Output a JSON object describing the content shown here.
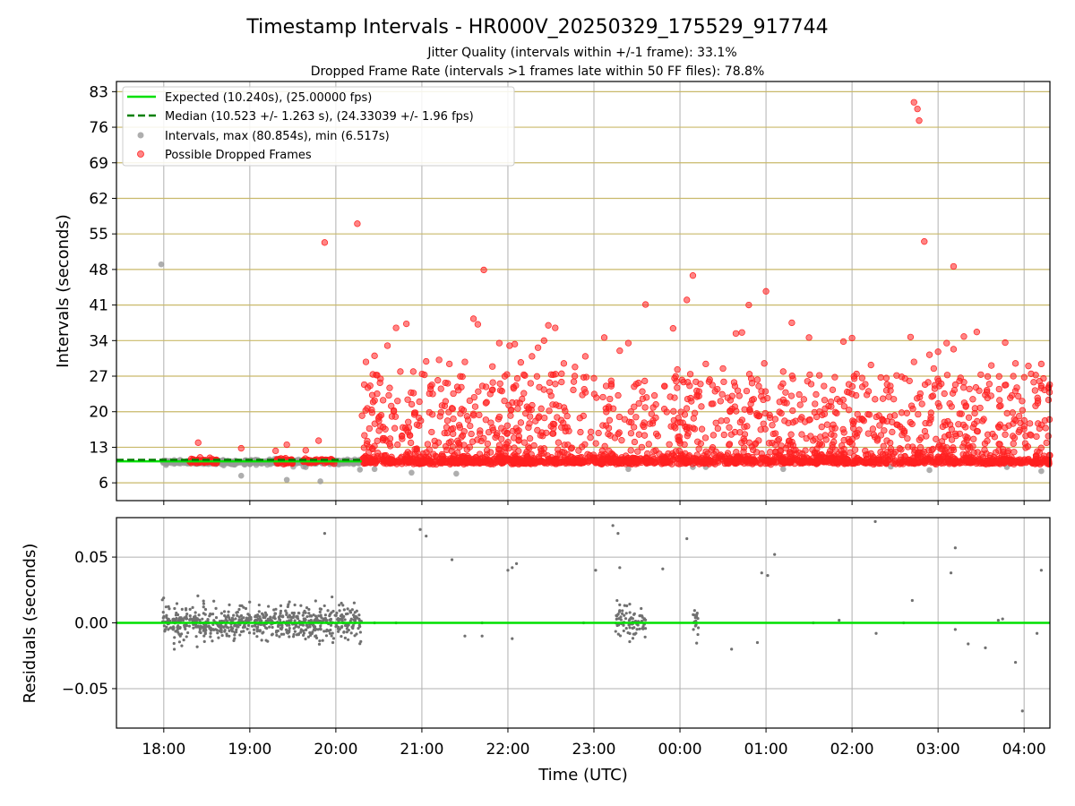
{
  "figure": {
    "title": "Timestamp Intervals - HR000V_20250329_175529_917744",
    "subtitle_1": "Jitter Quality (intervals within +/-1 frame): 33.1%",
    "subtitle_2": "Dropped Frame Rate (intervals >1 frames late within 50 FF files): 78.8%"
  },
  "colors": {
    "expected": "#00e000",
    "median": "#008000",
    "interval_points": "#9a9a9a",
    "dropped_points": "#ff2020",
    "residual_points": "#707070",
    "grid": "#b0b0b0",
    "hgrid_top": "#c9b96a"
  },
  "chart_data": [
    {
      "type": "scatter",
      "panel": "intervals",
      "ylabel": "Intervals (seconds)",
      "xlabel": "",
      "x_unit": "hours after 18:00 UTC on the first night",
      "xlim": [
        -0.55,
        10.3
      ],
      "ylim": [
        2.5,
        85
      ],
      "yticks": [
        6,
        13,
        20,
        27,
        34,
        41,
        48,
        55,
        62,
        69,
        76,
        83
      ],
      "grid": true,
      "legend": {
        "placement": "upper-left",
        "entries": [
          "Expected (10.240s), (25.00000 fps)",
          "Median (10.523 +/- 1.263 s), (24.33039 +/- 1.96 fps)",
          "Intervals, max (80.854s), min (6.517s)",
          "Possible Dropped Frames"
        ]
      },
      "expected": {
        "value": 10.24,
        "x_range": [
          -0.55,
          2.3
        ]
      },
      "median": {
        "value": 10.523,
        "x_range": [
          -0.55,
          2.3
        ]
      },
      "interval_series": {
        "name": "Intervals, max (80.854s), min (6.517s)",
        "points": [
          [
            -0.03,
            49.0
          ],
          [
            0.0,
            10.4
          ],
          [
            0.15,
            10.2
          ],
          [
            0.3,
            10.1
          ],
          [
            0.9,
            7.4
          ],
          [
            1.43,
            6.6
          ],
          [
            1.65,
            9.1
          ],
          [
            1.82,
            6.3
          ],
          [
            2.28,
            8.6
          ],
          [
            2.45,
            8.7
          ],
          [
            2.88,
            8.0
          ],
          [
            3.4,
            7.8
          ],
          [
            5.4,
            8.7
          ],
          [
            6.15,
            9.1
          ],
          [
            6.3,
            9.1
          ],
          [
            7.2,
            8.7
          ],
          [
            8.45,
            9.2
          ],
          [
            8.9,
            8.5
          ],
          [
            9.8,
            9.1
          ],
          [
            10.2,
            8.3
          ]
        ]
      },
      "dropped_series": {
        "name": "Possible Dropped Frames",
        "points": [
          [
            0.4,
            13.9
          ],
          [
            0.9,
            12.8
          ],
          [
            1.3,
            12.3
          ],
          [
            1.43,
            13.5
          ],
          [
            1.65,
            12.4
          ],
          [
            1.8,
            14.3
          ],
          [
            1.87,
            53.3
          ],
          [
            2.25,
            57.0
          ],
          [
            2.35,
            29.8
          ],
          [
            2.45,
            31.0
          ],
          [
            2.6,
            33.0
          ],
          [
            2.7,
            36.5
          ],
          [
            2.75,
            27.9
          ],
          [
            2.82,
            37.3
          ],
          [
            2.9,
            27.9
          ],
          [
            3.05,
            29.9
          ],
          [
            3.1,
            25.0
          ],
          [
            3.2,
            30.2
          ],
          [
            3.32,
            29.4
          ],
          [
            3.5,
            29.8
          ],
          [
            3.6,
            38.3
          ],
          [
            3.65,
            37.2
          ],
          [
            3.72,
            47.9
          ],
          [
            3.82,
            28.9
          ],
          [
            3.9,
            33.5
          ],
          [
            4.02,
            33.0
          ],
          [
            4.08,
            33.3
          ],
          [
            4.15,
            29.7
          ],
          [
            4.28,
            30.9
          ],
          [
            4.35,
            32.6
          ],
          [
            4.42,
            34.0
          ],
          [
            4.47,
            37.0
          ],
          [
            4.55,
            36.5
          ],
          [
            4.65,
            29.5
          ],
          [
            4.78,
            28.8
          ],
          [
            4.9,
            30.9
          ],
          [
            5.0,
            26.6
          ],
          [
            5.12,
            34.6
          ],
          [
            5.3,
            32.0
          ],
          [
            5.4,
            33.5
          ],
          [
            5.6,
            41.1
          ],
          [
            5.92,
            36.4
          ],
          [
            5.97,
            28.3
          ],
          [
            6.08,
            42.0
          ],
          [
            6.12,
            27.4
          ],
          [
            6.15,
            46.8
          ],
          [
            6.3,
            29.4
          ],
          [
            6.5,
            28.5
          ],
          [
            6.65,
            35.4
          ],
          [
            6.72,
            35.6
          ],
          [
            6.8,
            41.0
          ],
          [
            6.9,
            26.3
          ],
          [
            6.98,
            29.5
          ],
          [
            7.0,
            43.7
          ],
          [
            7.2,
            27.9
          ],
          [
            7.3,
            37.5
          ],
          [
            7.5,
            34.6
          ],
          [
            7.8,
            26.8
          ],
          [
            7.9,
            33.8
          ],
          [
            8.0,
            34.5
          ],
          [
            8.22,
            29.2
          ],
          [
            8.4,
            24.2
          ],
          [
            8.68,
            34.7
          ],
          [
            8.72,
            29.8
          ],
          [
            8.9,
            31.2
          ],
          [
            8.95,
            28.5
          ],
          [
            9.0,
            31.8
          ],
          [
            9.1,
            33.5
          ],
          [
            9.18,
            32.3
          ],
          [
            9.3,
            34.8
          ],
          [
            9.45,
            35.7
          ],
          [
            9.62,
            29.1
          ],
          [
            9.78,
            33.6
          ],
          [
            9.9,
            29.5
          ],
          [
            10.05,
            29.0
          ],
          [
            10.2,
            29.4
          ],
          [
            10.2,
            25.1
          ],
          [
            8.72,
            80.9
          ],
          [
            8.76,
            79.6
          ],
          [
            8.78,
            77.3
          ],
          [
            8.84,
            53.5
          ],
          [
            9.18,
            48.6
          ]
        ],
        "band": {
          "x_range": [
            2.3,
            10.3
          ],
          "y_range": [
            9.6,
            11.4
          ],
          "count": 1200
        },
        "scatter_region": {
          "x_range": [
            2.3,
            10.3
          ],
          "y_range": [
            10.5,
            27.5
          ],
          "count": 1100
        },
        "early_band": [
          [
            0.3,
            0.62
          ],
          [
            1.3,
            1.5
          ],
          [
            1.62,
            1.98
          ]
        ]
      }
    },
    {
      "type": "scatter",
      "panel": "residuals",
      "ylabel": "Residuals (seconds)",
      "xlabel": "Time (UTC)",
      "xlim": [
        -0.55,
        10.3
      ],
      "ylim": [
        -0.08,
        0.08
      ],
      "yticks": [
        -0.05,
        0.0,
        0.05
      ],
      "ytick_labels": [
        "−0.05",
        "0.00",
        "0.05"
      ],
      "xticks": [
        0,
        1,
        2,
        3,
        4,
        5,
        6,
        7,
        8,
        9,
        10
      ],
      "xtick_labels": [
        "18:00",
        "19:00",
        "20:00",
        "21:00",
        "22:00",
        "23:00",
        "00:00",
        "01:00",
        "02:00",
        "03:00",
        "04:00"
      ],
      "grid": true,
      "zero_line": 0.0,
      "dense_clusters": [
        {
          "x_range": [
            -0.02,
            2.3
          ],
          "sd": 0.0065,
          "count": 700
        },
        {
          "x_range": [
            5.25,
            5.6
          ],
          "sd": 0.006,
          "count": 90
        },
        {
          "x_range": [
            6.15,
            6.22
          ],
          "sd": 0.006,
          "count": 20
        }
      ],
      "points": [
        [
          1.87,
          0.068
        ],
        [
          2.98,
          0.071
        ],
        [
          3.05,
          0.066
        ],
        [
          3.35,
          0.048
        ],
        [
          4.0,
          0.04
        ],
        [
          4.05,
          0.042
        ],
        [
          4.1,
          0.045
        ],
        [
          5.22,
          0.074
        ],
        [
          5.28,
          0.068
        ],
        [
          5.3,
          0.042
        ],
        [
          5.02,
          0.04
        ],
        [
          5.8,
          0.041
        ],
        [
          6.08,
          0.064
        ],
        [
          6.95,
          0.038
        ],
        [
          7.02,
          0.036
        ],
        [
          7.1,
          0.052
        ],
        [
          8.27,
          0.077
        ],
        [
          8.7,
          0.017
        ],
        [
          9.15,
          0.038
        ],
        [
          9.2,
          0.057
        ],
        [
          10.2,
          0.04
        ],
        [
          3.5,
          -0.01
        ],
        [
          3.7,
          -0.01
        ],
        [
          4.05,
          -0.012
        ],
        [
          6.6,
          -0.02
        ],
        [
          6.9,
          -0.015
        ],
        [
          8.28,
          -0.008
        ],
        [
          9.2,
          -0.005
        ],
        [
          9.35,
          -0.016
        ],
        [
          9.55,
          -0.019
        ],
        [
          9.9,
          -0.03
        ],
        [
          9.98,
          -0.067
        ],
        [
          10.15,
          -0.008
        ],
        [
          2.45,
          0.0
        ],
        [
          2.7,
          0.0
        ],
        [
          3.7,
          0.0
        ],
        [
          4.88,
          0.0
        ],
        [
          7.55,
          0.0
        ],
        [
          7.85,
          0.002
        ],
        [
          8.6,
          0.0
        ],
        [
          9.7,
          0.002
        ],
        [
          9.75,
          0.003
        ]
      ]
    }
  ]
}
